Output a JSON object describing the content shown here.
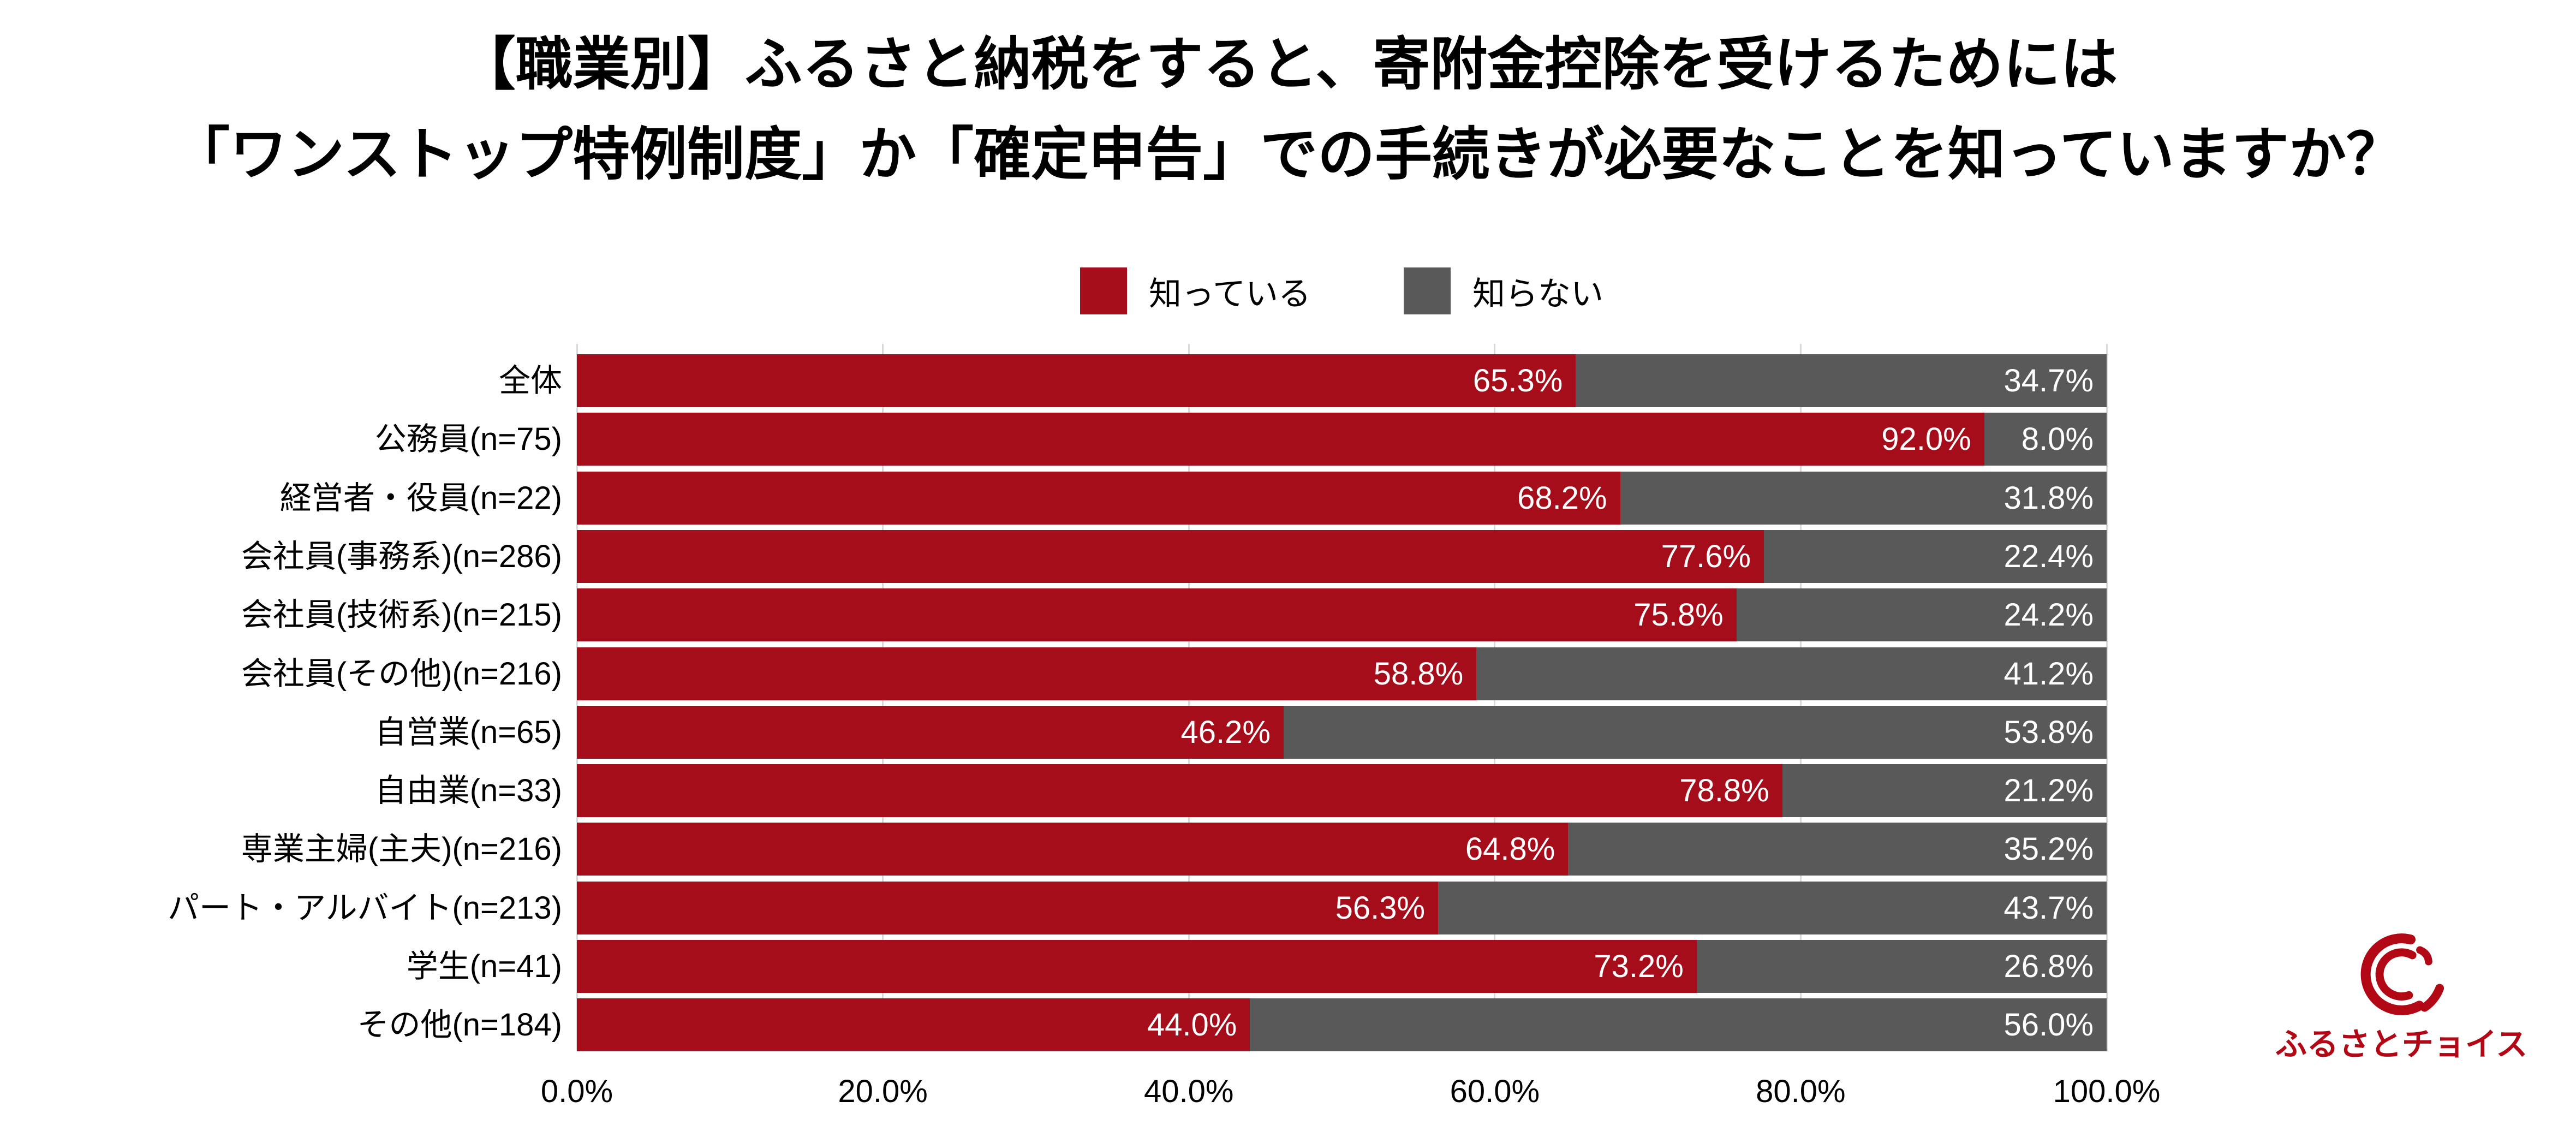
{
  "title": {
    "line1": "【職業別】ふるさと納税をすると、寄附金控除を受けるためには",
    "line2": "「ワンストップ特例制度」か「確定申告」での手続きが必要なことを知っていますか？"
  },
  "legend": {
    "items": [
      {
        "label": "知っている",
        "color": "#A40D19"
      },
      {
        "label": "知らない",
        "color": "#595959"
      }
    ]
  },
  "chart_data": {
    "type": "bar",
    "orientation": "horizontal",
    "stacked": true,
    "categories": [
      "全体",
      "公務員(n=75)",
      "経営者・役員(n=22)",
      "会社員(事務系)(n=286)",
      "会社員(技術系)(n=215)",
      "会社員(その他)(n=216)",
      "自営業(n=65)",
      "自由業(n=33)",
      "専業主婦(主夫)(n=216)",
      "パート・アルバイト(n=213)",
      "学生(n=41)",
      "その他(n=184)"
    ],
    "series": [
      {
        "name": "知っている",
        "color": "#A40D19",
        "values": [
          65.3,
          92.0,
          68.2,
          77.6,
          75.8,
          58.8,
          46.2,
          78.8,
          64.8,
          56.3,
          73.2,
          44.0
        ],
        "labels": [
          "65.3%",
          "92.0%",
          "68.2%",
          "77.6%",
          "75.8%",
          "58.8%",
          "46.2%",
          "78.8%",
          "64.8%",
          "56.3%",
          "73.2%",
          "44.0%"
        ]
      },
      {
        "name": "知らない",
        "color": "#595959",
        "values": [
          34.7,
          8.0,
          31.8,
          22.4,
          24.2,
          41.2,
          53.8,
          21.2,
          35.2,
          43.7,
          26.8,
          56.0
        ],
        "labels": [
          "34.7%",
          "8.0%",
          "31.8%",
          "22.4%",
          "24.2%",
          "41.2%",
          "53.8%",
          "21.2%",
          "35.2%",
          "43.7%",
          "26.8%",
          "56.0%"
        ]
      }
    ],
    "x_tick_labels": [
      "0.0%",
      "20.0%",
      "40.0%",
      "60.0%",
      "80.0%",
      "100.0%"
    ],
    "xlim": [
      0,
      100
    ],
    "grid": "vertical",
    "gridline_color": "#D9D9D9",
    "legend_position": "top-center",
    "value_label_style": "inside-end-white"
  },
  "logo": {
    "text": "ふるさとチョイス",
    "color": "#B20715"
  }
}
